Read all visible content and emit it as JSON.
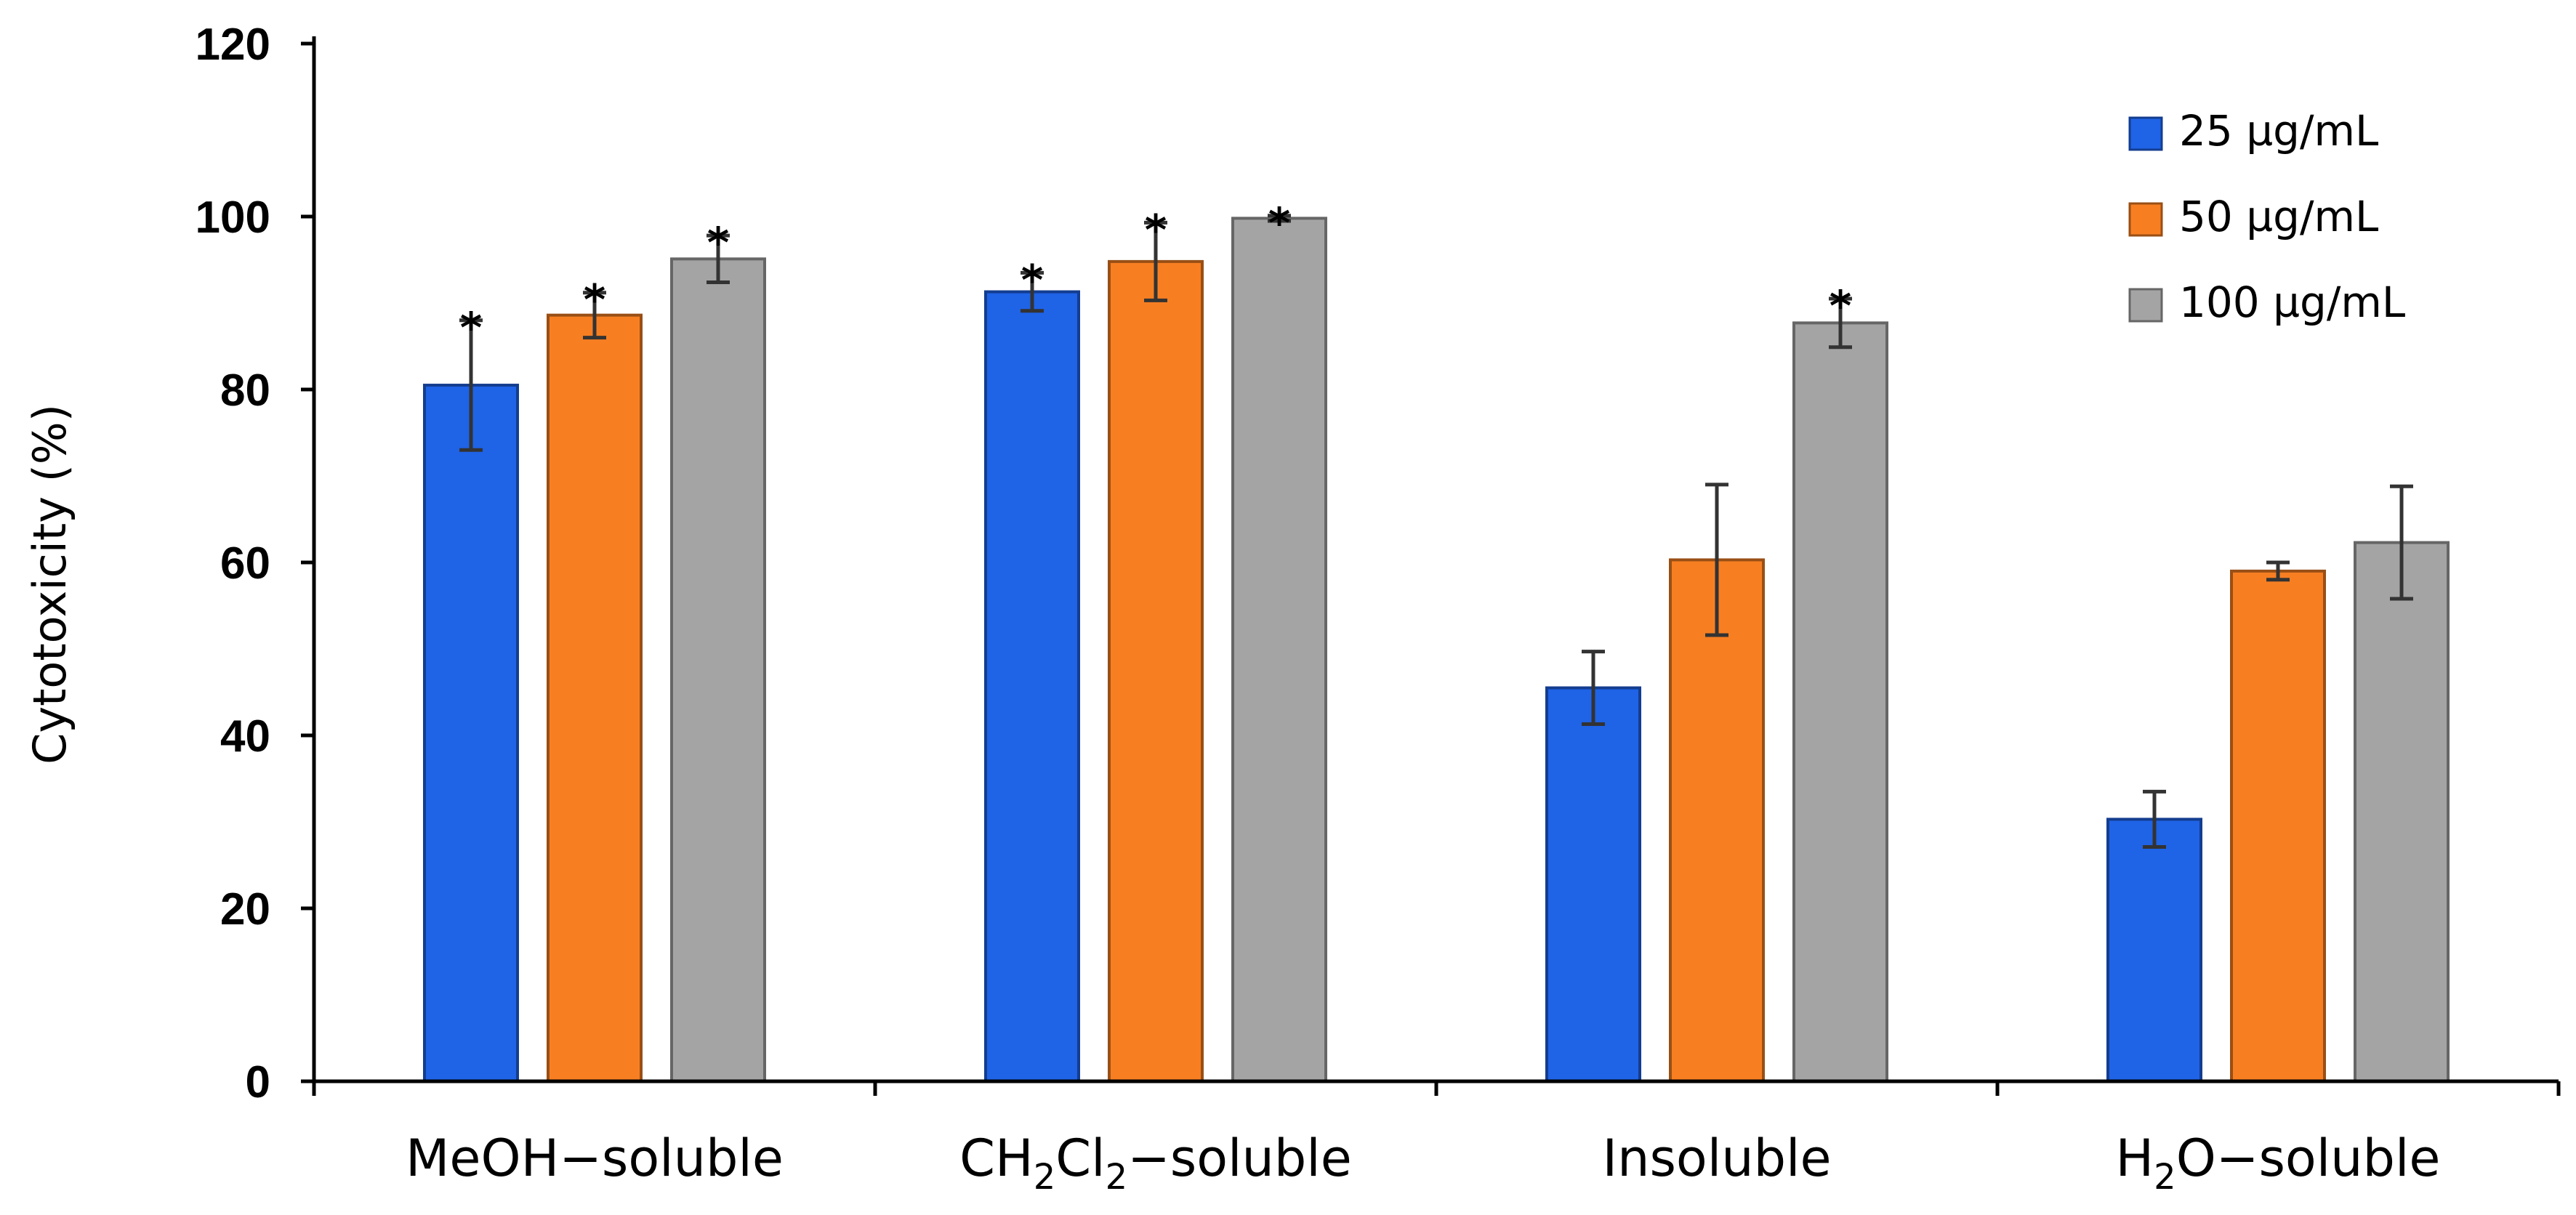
{
  "chart_data": {
    "type": "bar",
    "title": "",
    "xlabel": "",
    "ylabel": "Cytotoxicity (%)",
    "ylim": [
      0,
      120
    ],
    "yticks": [
      "0",
      "20",
      "40",
      "60",
      "80",
      "100",
      "120"
    ],
    "grid": false,
    "legend_position": "top-right",
    "categories": [
      {
        "prefix": "MeOH−soluble",
        "parts": []
      },
      {
        "prefix": "CH",
        "parts": [
          {
            "t": "2",
            "sub": true
          },
          {
            "t": "Cl",
            "sub": false
          },
          {
            "t": "2",
            "sub": true
          },
          {
            "t": "−soluble",
            "sub": false
          }
        ]
      },
      {
        "prefix": "Insoluble",
        "parts": []
      },
      {
        "prefix": "H",
        "parts": [
          {
            "t": "2",
            "sub": true
          },
          {
            "t": "O−soluble",
            "sub": false
          }
        ]
      }
    ],
    "series": [
      {
        "name": "25 µg/mL",
        "color": "#1f63e6",
        "values": [
          80.5,
          91.3,
          45.5,
          30.3
        ],
        "errors": [
          7.5,
          2.2,
          4.2,
          3.2
        ],
        "significance": [
          "*",
          "*",
          "",
          ""
        ]
      },
      {
        "name": "50 µg/mL",
        "color": "#f77f22",
        "values": [
          88.6,
          94.8,
          60.3,
          59.0
        ],
        "errors": [
          2.6,
          4.5,
          8.7,
          1.0
        ],
        "significance": [
          "*",
          "*",
          "",
          ""
        ]
      },
      {
        "name": "100 µg/mL",
        "color": "#a4a4a4",
        "values": [
          95.1,
          99.8,
          87.7,
          62.3
        ],
        "errors": [
          2.7,
          0.3,
          2.8,
          6.5
        ],
        "significance": [
          "*",
          "*",
          "*",
          ""
        ]
      }
    ]
  }
}
